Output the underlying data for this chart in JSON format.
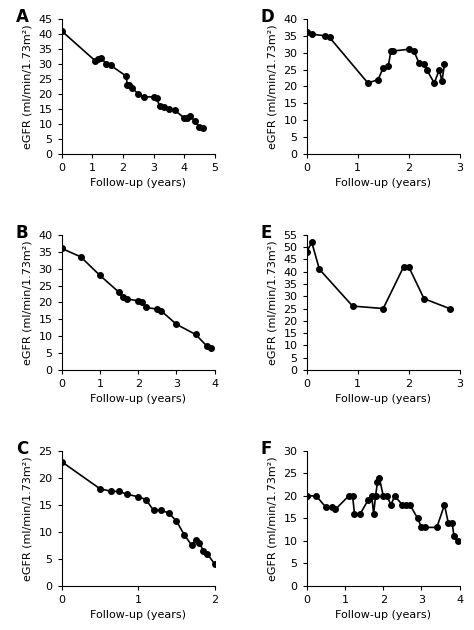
{
  "panels": [
    {
      "label": "A",
      "x": [
        0,
        1.1,
        1.2,
        1.3,
        1.45,
        1.6,
        2.1,
        2.15,
        2.2,
        2.3,
        2.5,
        2.7,
        3.0,
        3.1,
        3.2,
        3.35,
        3.5,
        3.7,
        4.0,
        4.1,
        4.2,
        4.35,
        4.5,
        4.6
      ],
      "y": [
        41,
        31,
        31.5,
        32,
        30,
        29.5,
        26,
        23,
        23,
        22,
        20,
        19,
        19,
        18.5,
        16,
        15.5,
        15,
        14.5,
        12,
        12,
        12.5,
        11,
        9,
        8.5
      ],
      "xlabel": "Follow-up (years)",
      "ylabel": "eGFR (ml/min/1.73m²)",
      "xlim": [
        0,
        5
      ],
      "ylim": [
        0,
        45
      ],
      "xticks": [
        0,
        1,
        2,
        3,
        4,
        5
      ],
      "yticks": [
        0,
        5,
        10,
        15,
        20,
        25,
        30,
        35,
        40,
        45
      ]
    },
    {
      "label": "B",
      "x": [
        0,
        0.5,
        1.0,
        1.5,
        1.6,
        1.7,
        2.0,
        2.1,
        2.2,
        2.5,
        2.6,
        3.0,
        3.5,
        3.8,
        3.9
      ],
      "y": [
        36,
        33.5,
        28,
        23,
        21.5,
        21,
        20.5,
        20,
        18.5,
        18,
        17.5,
        13.5,
        10.5,
        7,
        6.5
      ],
      "xlabel": "Follow-up (years)",
      "ylabel": "eGFR (ml/min/1.73m²)",
      "xlim": [
        0,
        4
      ],
      "ylim": [
        0,
        40
      ],
      "xticks": [
        0,
        1,
        2,
        3,
        4
      ],
      "yticks": [
        0,
        5,
        10,
        15,
        20,
        25,
        30,
        35,
        40
      ]
    },
    {
      "label": "C",
      "x": [
        0,
        0.5,
        0.65,
        0.75,
        0.85,
        1.0,
        1.1,
        1.2,
        1.3,
        1.4,
        1.5,
        1.6,
        1.7,
        1.75,
        1.8,
        1.85,
        1.9,
        2.0
      ],
      "y": [
        23,
        18,
        17.5,
        17.5,
        17,
        16.5,
        16,
        14,
        14,
        13.5,
        12,
        9.5,
        7.5,
        8.5,
        8,
        6.5,
        6,
        4
      ],
      "xlabel": "Follow-up (years)",
      "ylabel": "eGFR (ml/min/1.73m²)",
      "xlim": [
        0,
        2
      ],
      "ylim": [
        0,
        25
      ],
      "xticks": [
        0,
        1,
        2
      ],
      "yticks": [
        0,
        5,
        10,
        15,
        20,
        25
      ]
    },
    {
      "label": "D",
      "x": [
        0,
        0.1,
        0.35,
        0.45,
        1.2,
        1.4,
        1.5,
        1.6,
        1.65,
        1.7,
        2.0,
        2.1,
        2.2,
        2.3,
        2.35,
        2.5,
        2.6,
        2.65,
        2.7
      ],
      "y": [
        36,
        35.5,
        35,
        34.5,
        21,
        22,
        25.5,
        26,
        30.5,
        30.5,
        31,
        30.5,
        27,
        26.5,
        25,
        21,
        25,
        21.5,
        26.5
      ],
      "xlabel": "Follow-up (years)",
      "ylabel": "eGFR (ml/min/1.73m²)",
      "xlim": [
        0,
        3
      ],
      "ylim": [
        0,
        40
      ],
      "xticks": [
        0,
        1,
        2,
        3
      ],
      "yticks": [
        0,
        5,
        10,
        15,
        20,
        25,
        30,
        35,
        40
      ]
    },
    {
      "label": "E",
      "x": [
        0,
        0.1,
        0.25,
        0.9,
        1.5,
        1.9,
        2.0,
        2.3,
        2.8
      ],
      "y": [
        48,
        52,
        41,
        26,
        25,
        42,
        42,
        29,
        25
      ],
      "xlabel": "Follow-up (years)",
      "ylabel": "eGFR (ml/min/1.73m²)",
      "xlim": [
        0,
        3
      ],
      "ylim": [
        0,
        55
      ],
      "xticks": [
        0,
        1,
        2,
        3
      ],
      "yticks": [
        0,
        5,
        10,
        15,
        20,
        25,
        30,
        35,
        40,
        45,
        50,
        55
      ]
    },
    {
      "label": "F",
      "x": [
        0,
        0.25,
        0.5,
        0.65,
        0.75,
        1.1,
        1.2,
        1.25,
        1.4,
        1.6,
        1.7,
        1.75,
        1.8,
        1.85,
        1.9,
        2.0,
        2.1,
        2.2,
        2.3,
        2.5,
        2.6,
        2.7,
        2.9,
        3.0,
        3.1,
        3.4,
        3.6,
        3.7,
        3.8,
        3.85,
        3.95
      ],
      "y": [
        20,
        20,
        17.5,
        17.5,
        17,
        20,
        20,
        16,
        16,
        19,
        20,
        16,
        20,
        23,
        24,
        20,
        20,
        18,
        20,
        18,
        18,
        18,
        15,
        13,
        13,
        13,
        18,
        14,
        14,
        11,
        10
      ],
      "xlabel": "Follow-up (years)",
      "ylabel": "eGFR (ml/min/1.73m²)",
      "xlim": [
        0,
        4
      ],
      "ylim": [
        0,
        30
      ],
      "xticks": [
        0,
        1,
        2,
        3,
        4
      ],
      "yticks": [
        0,
        5,
        10,
        15,
        20,
        25,
        30
      ]
    }
  ],
  "marker": "o",
  "markersize": 4,
  "linewidth": 1.2,
  "color": "black",
  "tick_fontsize": 8,
  "axis_label_fontsize": 8,
  "panel_label_fontsize": 12
}
